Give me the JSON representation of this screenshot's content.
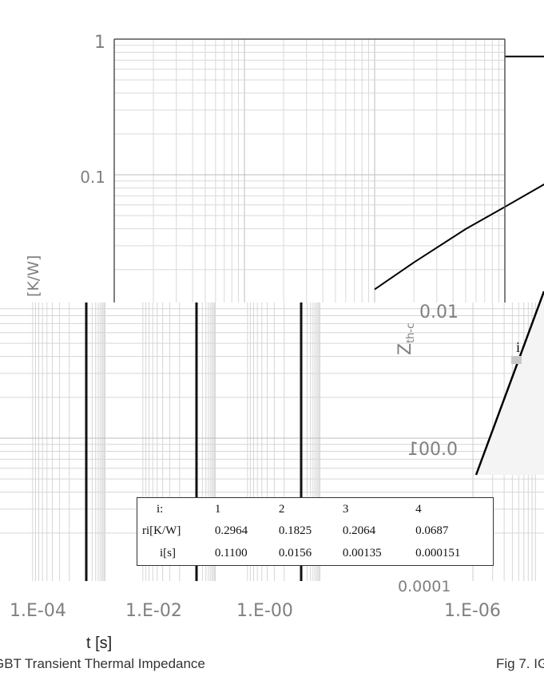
{
  "chart_data": {
    "type": "line",
    "title": "",
    "ylabel": "Zₜₕ₋ᶜ [K/W]",
    "ylabel_prefix": "Z",
    "ylabel_subscript": "th-c",
    "ylabel_units": "[K/W]",
    "xlabel": "t  [s]",
    "x_scale": "log",
    "y_scale": "log",
    "xlim": [
      1e-06,
      1
    ],
    "ylim": [
      0.0001,
      1
    ],
    "grid": true,
    "x_tick_labels": [
      "1.E-06",
      "1.E-04",
      "1.E-02",
      "1.E-00"
    ],
    "y_tick_labels": [
      "0.0001",
      "0.001",
      "0.01",
      "0.1",
      "1"
    ],
    "series": [
      {
        "x": [
          3e-06,
          5e-06,
          1e-05,
          2e-05,
          5e-05,
          0.0001,
          0.0002,
          0.0005,
          0.001,
          0.002,
          0.005,
          0.01,
          0.02,
          0.05,
          0.1,
          0.2,
          0.5,
          1
        ],
        "y": [
          0.0007,
          0.0011,
          0.0021,
          0.0039,
          0.0085,
          0.0143,
          0.0226,
          0.0398,
          0.058,
          0.085,
          0.14,
          0.2,
          0.28,
          0.38,
          0.5,
          0.64,
          0.73,
          0.745
        ]
      }
    ]
  },
  "table": {
    "rows": [
      [
        "i:",
        "1",
        "2",
        "3",
        "4"
      ],
      [
        "ri[K/W]",
        "0.2964",
        "0.1825",
        "0.2064",
        "0.0687"
      ],
      [
        "i[s]",
        "0.1100",
        "0.0156",
        "0.00135",
        "0.000151"
      ]
    ]
  },
  "captions": {
    "left": "GBT Transient Thermal Impedance",
    "right": "Fig 7. IG"
  }
}
